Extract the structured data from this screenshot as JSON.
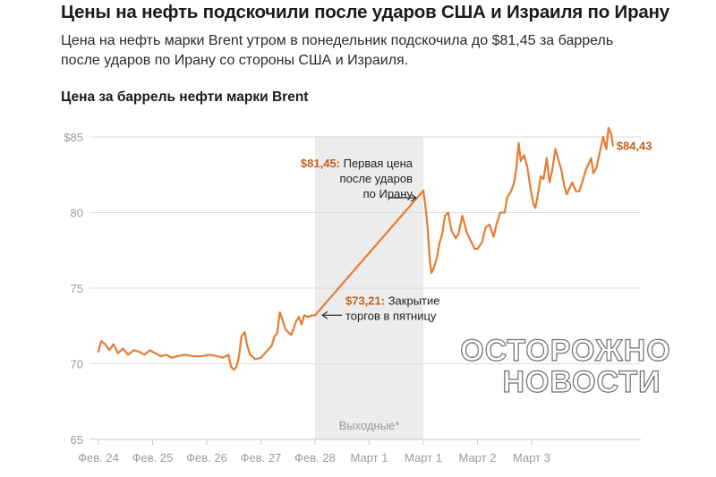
{
  "header": {
    "headline": "Цены на нефть подскочили после ударов США и Израиля по Ирану",
    "subhead_line1": "Цена на нефть марки Brent утром в понедельник подскочила до $81,45 за баррель",
    "subhead_line2": "после ударов по Ирану со стороны США и Израиля."
  },
  "watermark": {
    "line1": "ОСТОРОЖНО",
    "line2": "НОВОСТИ"
  },
  "colors": {
    "line": "#e47d33",
    "accent_text": "#c4601d",
    "shade": "#ececec",
    "grid": "#dcdcdc"
  },
  "chart_data": {
    "type": "line",
    "title": "Цена за баррель нефти марки Brent",
    "xlabel": "",
    "ylabel": "",
    "ylim": [
      65,
      86.5
    ],
    "grid": "horizontal",
    "y_ticks": [
      {
        "value": 65,
        "label": "65"
      },
      {
        "value": 70,
        "label": "70"
      },
      {
        "value": 75,
        "label": "75"
      },
      {
        "value": 80,
        "label": "80"
      },
      {
        "value": 85,
        "label": "$85"
      }
    ],
    "x_ticks": [
      "Фев. 24",
      "Фев. 25",
      "Фев. 26",
      "Фев. 27",
      "Фев. 28",
      "Март 1",
      "Март 1",
      "Март 2",
      "Март 3"
    ],
    "shaded_region": {
      "from": 4,
      "to": 6,
      "label": "Выходные*"
    },
    "annotations": [
      {
        "x": 6,
        "y": 81.45,
        "value": "$81,45:",
        "lines": [
          "Первая цена",
          "после ударов",
          "по Ирану"
        ]
      },
      {
        "x": 4,
        "y": 73.21,
        "value": "$73,21:",
        "lines": [
          "Закрытие",
          "торгов в пятницу"
        ]
      }
    ],
    "end_label": "$84,43",
    "series": [
      {
        "points": [
          [
            0.0,
            70.8
          ],
          [
            0.05,
            71.5
          ],
          [
            0.12,
            71.3
          ],
          [
            0.2,
            70.9
          ],
          [
            0.28,
            71.3
          ],
          [
            0.36,
            70.7
          ],
          [
            0.45,
            71.0
          ],
          [
            0.55,
            70.6
          ],
          [
            0.65,
            70.9
          ],
          [
            0.75,
            70.8
          ],
          [
            0.85,
            70.6
          ],
          [
            0.95,
            70.9
          ],
          [
            1.05,
            70.7
          ],
          [
            1.15,
            70.5
          ],
          [
            1.25,
            70.6
          ],
          [
            1.35,
            70.4
          ],
          [
            1.45,
            70.5
          ],
          [
            1.6,
            70.6
          ],
          [
            1.75,
            70.5
          ],
          [
            1.9,
            70.5
          ],
          [
            2.05,
            70.6
          ],
          [
            2.2,
            70.5
          ],
          [
            2.3,
            70.4
          ],
          [
            2.4,
            70.6
          ],
          [
            2.45,
            69.8
          ],
          [
            2.5,
            69.6
          ],
          [
            2.55,
            69.8
          ],
          [
            2.6,
            70.6
          ],
          [
            2.64,
            71.8
          ],
          [
            2.7,
            72.1
          ],
          [
            2.74,
            71.3
          ],
          [
            2.8,
            70.6
          ],
          [
            2.9,
            70.3
          ],
          [
            3.0,
            70.4
          ],
          [
            3.1,
            70.8
          ],
          [
            3.2,
            71.2
          ],
          [
            3.25,
            71.8
          ],
          [
            3.3,
            72.0
          ],
          [
            3.35,
            73.4
          ],
          [
            3.4,
            72.9
          ],
          [
            3.45,
            72.3
          ],
          [
            3.5,
            72.1
          ],
          [
            3.56,
            71.9
          ],
          [
            3.6,
            72.3
          ],
          [
            3.65,
            72.8
          ],
          [
            3.7,
            73.1
          ],
          [
            3.75,
            72.6
          ],
          [
            3.8,
            73.2
          ],
          [
            3.87,
            73.1
          ],
          [
            3.95,
            73.2
          ],
          [
            4.0,
            73.21
          ],
          [
            6.0,
            81.45
          ],
          [
            6.04,
            80.4
          ],
          [
            6.08,
            79.0
          ],
          [
            6.12,
            76.8
          ],
          [
            6.15,
            76.0
          ],
          [
            6.2,
            76.4
          ],
          [
            6.25,
            77.0
          ],
          [
            6.3,
            78.0
          ],
          [
            6.35,
            78.6
          ],
          [
            6.4,
            79.8
          ],
          [
            6.46,
            80.0
          ],
          [
            6.52,
            78.8
          ],
          [
            6.6,
            78.3
          ],
          [
            6.65,
            78.6
          ],
          [
            6.72,
            79.8
          ],
          [
            6.8,
            78.7
          ],
          [
            6.88,
            78.1
          ],
          [
            6.95,
            77.6
          ],
          [
            7.0,
            77.6
          ],
          [
            7.08,
            78.0
          ],
          [
            7.15,
            79.0
          ],
          [
            7.22,
            79.2
          ],
          [
            7.3,
            78.4
          ],
          [
            7.35,
            79.2
          ],
          [
            7.42,
            80.0
          ],
          [
            7.5,
            80.0
          ],
          [
            7.55,
            81.0
          ],
          [
            7.62,
            81.4
          ],
          [
            7.68,
            82.0
          ],
          [
            7.72,
            83.0
          ],
          [
            7.76,
            84.6
          ],
          [
            7.8,
            83.4
          ],
          [
            7.86,
            83.8
          ],
          [
            7.92,
            83.0
          ],
          [
            7.98,
            81.6
          ],
          [
            8.03,
            80.6
          ],
          [
            8.07,
            80.3
          ],
          [
            8.12,
            81.3
          ],
          [
            8.17,
            82.4
          ],
          [
            8.22,
            82.2
          ],
          [
            8.28,
            83.6
          ],
          [
            8.33,
            82.0
          ],
          [
            8.38,
            82.8
          ],
          [
            8.44,
            84.2
          ],
          [
            8.5,
            83.4
          ],
          [
            8.55,
            82.8
          ],
          [
            8.6,
            81.8
          ],
          [
            8.65,
            81.2
          ],
          [
            8.7,
            81.6
          ],
          [
            8.75,
            82.0
          ],
          [
            8.82,
            81.4
          ],
          [
            8.88,
            81.4
          ],
          [
            8.95,
            82.2
          ],
          [
            9.0,
            82.8
          ],
          [
            9.05,
            83.2
          ],
          [
            9.1,
            83.6
          ],
          [
            9.14,
            82.6
          ],
          [
            9.2,
            83.0
          ],
          [
            9.26,
            84.0
          ],
          [
            9.32,
            85.0
          ],
          [
            9.38,
            84.2
          ],
          [
            9.42,
            85.6
          ],
          [
            9.47,
            85.2
          ],
          [
            9.5,
            84.43
          ]
        ]
      }
    ]
  }
}
